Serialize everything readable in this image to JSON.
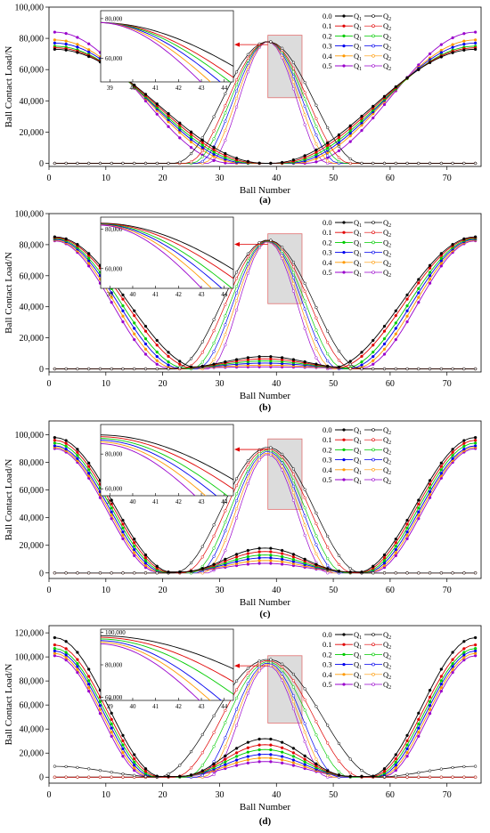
{
  "colors": [
    "#000000",
    "#e00000",
    "#00cc00",
    "#0000ee",
    "#ff9900",
    "#9900cc"
  ],
  "chart_data": [
    {
      "type": "line",
      "caption": "(a)",
      "xlabel": "Ball Number",
      "ylabel": "Ball Contact Load/N",
      "xlim": [
        0,
        76
      ],
      "ylim": [
        -2000,
        100000
      ],
      "xticks": [
        0,
        10,
        20,
        30,
        40,
        50,
        60,
        70
      ],
      "yticks": [
        0,
        20000,
        40000,
        60000,
        80000,
        100000
      ],
      "ytick_labels": [
        "0",
        "20,000",
        "40,000",
        "60,000",
        "80,000",
        "100,000"
      ],
      "legend": {
        "placement": "top-right",
        "labels": [
          "0.0",
          "0.1",
          "0.2",
          "0.3",
          "0.4",
          "0.5"
        ],
        "q1": "Q",
        "q2": "Q",
        "sub1": "1",
        "sub2": "2"
      },
      "q1": {
        "peak": [
          73000,
          74000,
          75000,
          77000,
          79000,
          84000
        ],
        "zero_l": [
          38,
          37,
          36,
          35,
          34,
          32
        ],
        "zero_r": [
          39,
          40,
          41,
          42,
          43,
          45
        ]
      },
      "q2": {
        "peak": [
          78000,
          78000,
          78000,
          78000,
          78000,
          78000
        ],
        "start": [
          22,
          24,
          25,
          26,
          27,
          28
        ],
        "end": [
          55,
          53,
          52,
          51,
          50,
          49
        ]
      },
      "region": [
        38.5,
        44.5,
        42000,
        82000
      ],
      "inset": {
        "xlim": [
          38.6,
          44.4
        ],
        "ylim": [
          48000,
          84000
        ],
        "xticks": [
          39,
          40,
          41,
          42,
          43,
          44
        ],
        "yticks": [
          60000,
          80000
        ],
        "ytick_labels": [
          "60,000",
          "80,000"
        ]
      }
    },
    {
      "type": "line",
      "caption": "(b)",
      "xlabel": "Ball Number",
      "ylabel": "Ball Contact Load/N",
      "xlim": [
        0,
        76
      ],
      "ylim": [
        -2000,
        100000
      ],
      "xticks": [
        0,
        10,
        20,
        30,
        40,
        50,
        60,
        70
      ],
      "yticks": [
        0,
        20000,
        40000,
        60000,
        80000,
        100000
      ],
      "ytick_labels": [
        "0",
        "20,000",
        "40,000",
        "60,000",
        "80,000",
        "100,000"
      ],
      "legend": {
        "placement": "top-right",
        "labels": [
          "0.0",
          "0.1",
          "0.2",
          "0.3",
          "0.4",
          "0.5"
        ],
        "q1": "Q",
        "q2": "Q",
        "sub1": "1",
        "sub2": "2"
      },
      "q1": {
        "peak": [
          85000,
          84500,
          84000,
          83500,
          83000,
          82500
        ],
        "zero_l": [
          27,
          26,
          24.5,
          23.5,
          22.5,
          21.5
        ],
        "zero_r": [
          49,
          50,
          51.5,
          52.5,
          53.5,
          54.5
        ],
        "mid": [
          8000,
          6500,
          5000,
          3500,
          2000,
          800
        ]
      },
      "q2": {
        "peak": [
          83000,
          82800,
          82600,
          82400,
          82200,
          82000
        ],
        "start": [
          22,
          23.5,
          25,
          26,
          27,
          28
        ],
        "end": [
          55,
          53.5,
          52,
          51,
          50,
          49
        ]
      },
      "region": [
        38.5,
        44.5,
        42000,
        87000
      ],
      "inset": {
        "xlim": [
          38.6,
          44.4
        ],
        "ylim": [
          50000,
          86000
        ],
        "xticks": [
          39,
          40,
          41,
          42,
          43,
          44
        ],
        "yticks": [
          60000,
          80000
        ],
        "ytick_labels": [
          "60,000",
          "80,000"
        ]
      }
    },
    {
      "type": "line",
      "caption": "(c)",
      "xlabel": "Ball Number",
      "ylabel": "Ball Contact Load/N",
      "xlim": [
        0,
        76
      ],
      "ylim": [
        -4000,
        110000
      ],
      "xticks": [
        0,
        10,
        20,
        30,
        40,
        50,
        60,
        70
      ],
      "yticks": [
        0,
        20000,
        40000,
        60000,
        80000,
        100000
      ],
      "ytick_labels": [
        "0",
        "20,000",
        "40,000",
        "60,000",
        "80,000",
        "100,000"
      ],
      "legend": {
        "placement": "top-right",
        "labels": [
          "0.0",
          "0.1",
          "0.2",
          "0.3",
          "0.4",
          "0.5"
        ],
        "q1": "Q",
        "q2": "Q",
        "sub1": "1",
        "sub2": "2"
      },
      "q1": {
        "peak": [
          98000,
          96000,
          94000,
          92000,
          91000,
          90000
        ],
        "zero_l": [
          22,
          21.5,
          21,
          20.5,
          20,
          19.5
        ],
        "zero_r": [
          54,
          54.5,
          55,
          55.5,
          56,
          56.5
        ],
        "mid": [
          18000,
          15500,
          13000,
          11000,
          9000,
          7000
        ]
      },
      "q2": {
        "peak": [
          91000,
          90000,
          89000,
          88000,
          87000,
          86000
        ],
        "start": [
          22,
          23.5,
          25,
          26,
          27,
          28
        ],
        "end": [
          55,
          53.5,
          52,
          51,
          50,
          49
        ]
      },
      "region": [
        38.5,
        44.5,
        46000,
        97000
      ],
      "inset": {
        "xlim": [
          38.6,
          44.4
        ],
        "ylim": [
          56000,
          97000
        ],
        "xticks": [
          39,
          40,
          41,
          42,
          43,
          44
        ],
        "yticks": [
          60000,
          80000
        ],
        "ytick_labels": [
          "60,000",
          "80,000"
        ]
      }
    },
    {
      "type": "line",
      "caption": "(d)",
      "xlabel": "Ball Number",
      "ylabel": "Ball Contact Load/N",
      "xlim": [
        0,
        76
      ],
      "ylim": [
        -5000,
        126000
      ],
      "xticks": [
        0,
        10,
        20,
        30,
        40,
        50,
        60,
        70
      ],
      "yticks": [
        0,
        20000,
        40000,
        60000,
        80000,
        100000,
        120000
      ],
      "ytick_labels": [
        "0",
        "20,000",
        "40,000",
        "60,000",
        "80,000",
        "100,000",
        "120,000"
      ],
      "legend": {
        "placement": "top-right",
        "labels": [
          "0.0",
          "0.1",
          "0.2",
          "0.3",
          "0.4",
          "0.5"
        ],
        "q1": "Q",
        "q2": "Q",
        "sub1": "1",
        "sub2": "2"
      },
      "q1": {
        "peak": [
          116000,
          110000,
          107000,
          105000,
          103000,
          101000
        ],
        "zero_l": [
          20,
          19.5,
          19,
          18.5,
          18,
          17.5
        ],
        "zero_r": [
          56,
          56.5,
          57,
          57.5,
          58,
          58.5
        ],
        "mid": [
          32000,
          27000,
          23000,
          19000,
          16000,
          13000
        ]
      },
      "q2": {
        "peak": [
          98000,
          97000,
          96000,
          95000,
          94000,
          93000
        ],
        "start": [
          19,
          22,
          24,
          26,
          27,
          28
        ],
        "end": [
          58,
          55,
          53,
          51,
          50,
          49
        ],
        "edge": [
          9000,
          0,
          0,
          0,
          0,
          0
        ]
      },
      "region": [
        38.5,
        44.5,
        45000,
        101000
      ],
      "inset": {
        "xlim": [
          38.6,
          44.4
        ],
        "ylim": [
          58000,
          102000
        ],
        "xticks": [
          39,
          40,
          41,
          42,
          43,
          44
        ],
        "yticks": [
          60000,
          80000,
          100000
        ],
        "ytick_labels": [
          "60,000",
          "80,000",
          "100,000"
        ]
      }
    }
  ]
}
